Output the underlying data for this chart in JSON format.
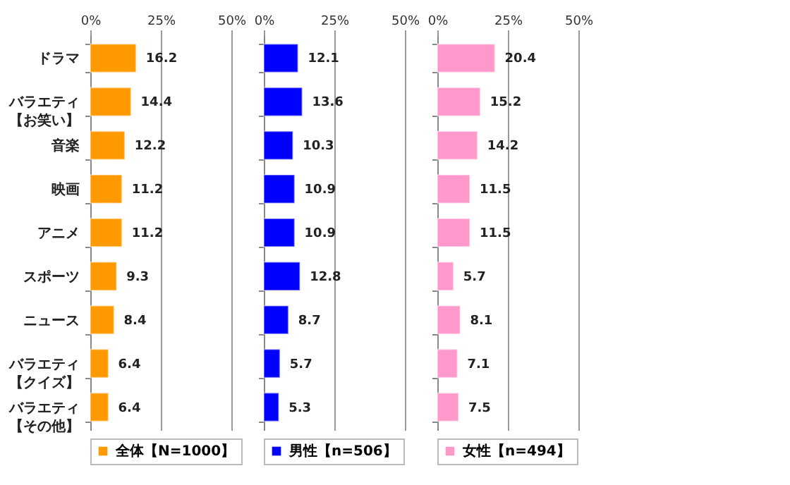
{
  "chart_data": [
    {
      "type": "bar",
      "orientation": "horizontal",
      "categories": [
        "ドラマ",
        "バラエティ【お笑い】",
        "音楽",
        "映画",
        "アニメ",
        "スポーツ",
        "ニュース",
        "バラエティ【クイズ】",
        "バラエティ【その他】"
      ],
      "series": [
        {
          "name": "全体【N=1000】",
          "color": "#ff9900",
          "values": [
            16.2,
            14.4,
            12.2,
            11.2,
            11.2,
            9.3,
            8.4,
            6.4,
            6.4
          ]
        }
      ],
      "xlim": [
        0,
        50
      ],
      "xticks": [
        {
          "value": 0,
          "label": "0%"
        },
        {
          "value": 25,
          "label": "25%"
        },
        {
          "value": 50,
          "label": "50%"
        }
      ],
      "grid": "x",
      "legend": "bottom",
      "data_labels": true
    },
    {
      "type": "bar",
      "orientation": "horizontal",
      "categories": [
        null,
        null,
        null,
        null,
        null,
        null,
        null,
        null,
        null
      ],
      "series": [
        {
          "name": "男性【n=506】",
          "color": "#0000ff",
          "values": [
            12.1,
            13.6,
            10.3,
            10.9,
            10.9,
            12.8,
            8.7,
            5.7,
            5.3
          ]
        }
      ],
      "xlim": [
        0,
        50
      ],
      "xticks": [
        {
          "value": 0,
          "label": "0%"
        },
        {
          "value": 25,
          "label": "25%"
        },
        {
          "value": 50,
          "label": "50%"
        }
      ],
      "grid": "x",
      "legend": "bottom",
      "data_labels": true,
      "tick_labels": "x"
    },
    {
      "type": "bar",
      "orientation": "horizontal",
      "categories": [
        null,
        null,
        null,
        null,
        null,
        null,
        null,
        null,
        null
      ],
      "series": [
        {
          "name": "女性【n=494】",
          "color": "#ff99cc",
          "values": [
            20.4,
            15.2,
            14.2,
            11.5,
            11.5,
            5.7,
            8.1,
            7.1,
            7.5
          ]
        }
      ],
      "xlim": [
        0,
        50
      ],
      "xticks": [
        {
          "value": 0,
          "label": "0%"
        },
        {
          "value": 25,
          "label": "25%"
        },
        {
          "value": 50,
          "label": "50%"
        }
      ],
      "grid": "x",
      "legend": "bottom",
      "data_labels": true,
      "tick_labels": "x"
    }
  ]
}
